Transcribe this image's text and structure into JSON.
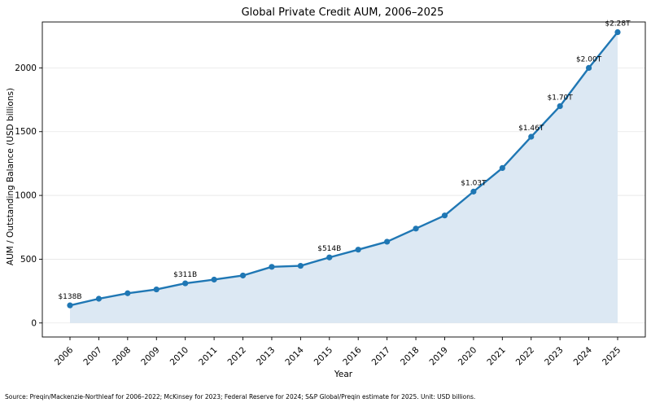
{
  "chart_data": {
    "type": "line",
    "title": "Global Private Credit AUM, 2006–2025",
    "xlabel": "Year",
    "ylabel": "AUM / Outstanding Balance (USD billions)",
    "ylim": [
      -110,
      2360
    ],
    "yticks": [
      0,
      500,
      1000,
      1500,
      2000
    ],
    "grid": "horizontal",
    "area_fill": true,
    "colors": {
      "line": "#1f77b4",
      "fill": "#dce8f3",
      "grid": "#e6e6e6"
    },
    "categories": [
      "2006",
      "2007",
      "2008",
      "2009",
      "2010",
      "2011",
      "2012",
      "2013",
      "2014",
      "2015",
      "2016",
      "2017",
      "2018",
      "2019",
      "2020",
      "2021",
      "2022",
      "2023",
      "2024",
      "2025"
    ],
    "series": [
      {
        "values": [
          138,
          190,
          233,
          263,
          311,
          340,
          372,
          440,
          448,
          514,
          575,
          637,
          740,
          843,
          1030,
          1215,
          1460,
          1700,
          2000,
          2280
        ]
      }
    ],
    "annotations": [
      {
        "x": "2006",
        "y": 138,
        "text": "$138B"
      },
      {
        "x": "2010",
        "y": 311,
        "text": "$311B"
      },
      {
        "x": "2015",
        "y": 514,
        "text": "$514B"
      },
      {
        "x": "2020",
        "y": 1030,
        "text": "$1.03T"
      },
      {
        "x": "2022",
        "y": 1460,
        "text": "$1.46T"
      },
      {
        "x": "2023",
        "y": 1700,
        "text": "$1.70T"
      },
      {
        "x": "2024",
        "y": 2000,
        "text": "$2.00T"
      },
      {
        "x": "2025",
        "y": 2280,
        "text": "$2.28T"
      }
    ]
  },
  "source_note": "Source: Preqin/Mackenzie-Northleaf for 2006–2022; McKinsey for 2023; Federal Reserve for 2024; S&P Global/Preqin estimate for 2025. Unit: USD billions."
}
